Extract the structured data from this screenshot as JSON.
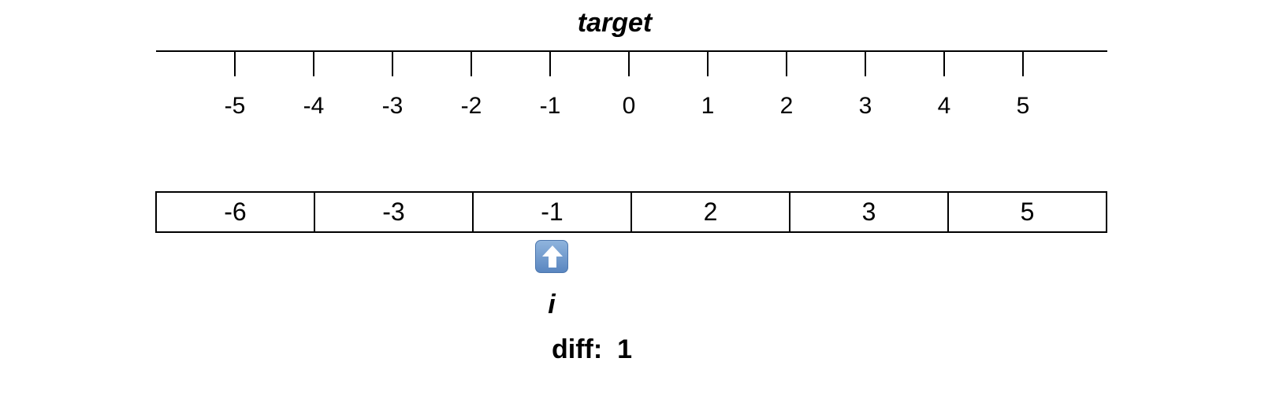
{
  "axis": {
    "title": "target",
    "ticks": [
      "-5",
      "-4",
      "-3",
      "-2",
      "-1",
      "0",
      "1",
      "2",
      "3",
      "4",
      "5"
    ]
  },
  "array": {
    "values": [
      "-6",
      "-3",
      "-1",
      "2",
      "3",
      "5"
    ]
  },
  "pointer": {
    "label": "i",
    "icon": "up-arrow-icon",
    "index": 2
  },
  "diff": {
    "label": "diff:",
    "value": "1"
  }
}
